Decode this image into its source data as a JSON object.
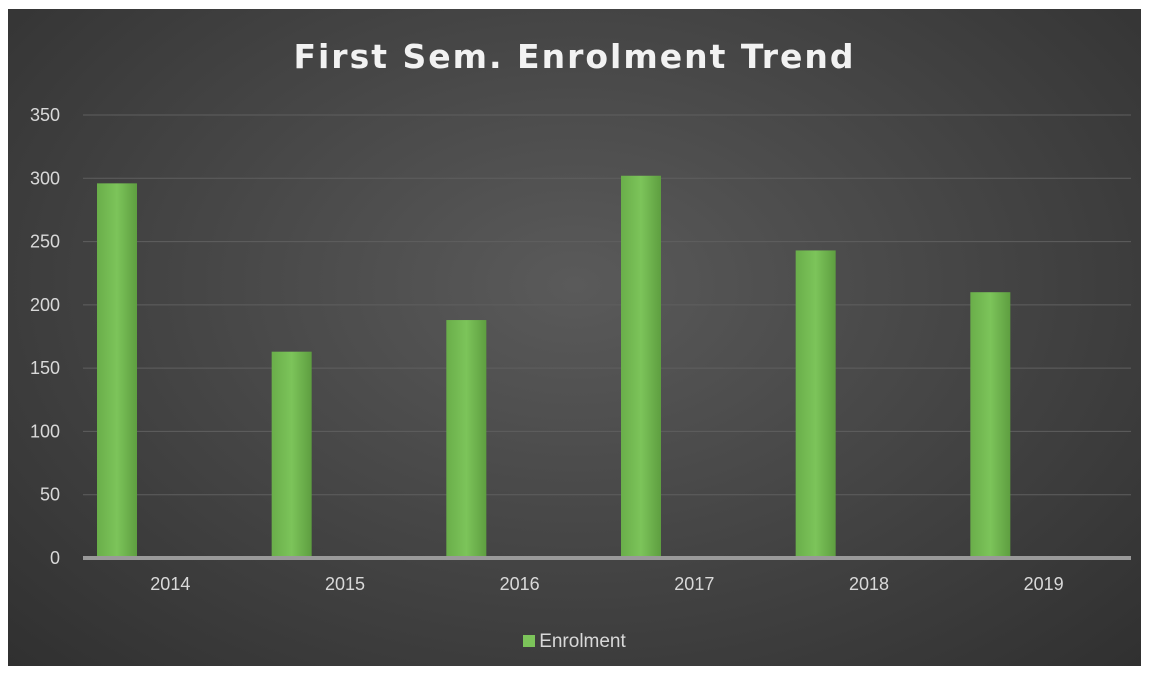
{
  "chart_data": {
    "type": "bar",
    "title": "First Sem. Enrolment Trend",
    "xlabel": "",
    "ylabel": "",
    "categories": [
      "2014",
      "2015",
      "2016",
      "2017",
      "2018",
      "2019"
    ],
    "series": [
      {
        "name": "Enrolment",
        "values": [
          296,
          163,
          188,
          302,
          243,
          210
        ],
        "color": "#7cc45a"
      }
    ],
    "ylim": [
      0,
      350
    ],
    "yticks": [
      0,
      50,
      100,
      150,
      200,
      250,
      300,
      350
    ],
    "ytick_labels": [
      "0",
      "50",
      "100",
      "150",
      "200",
      "250",
      "300",
      "350"
    ],
    "grid": true,
    "legend": "bottom",
    "colors": {
      "background": "#3c3c3c",
      "gridline": "#5f5f5f",
      "axis": "#9a9a9a",
      "text": "#d9d9d9"
    }
  }
}
